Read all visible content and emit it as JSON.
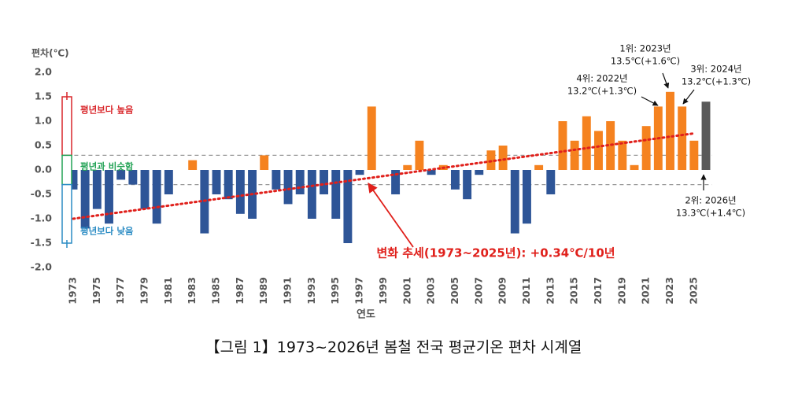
{
  "chart_data": {
    "type": "bar",
    "y_axis_title": "편차(℃)",
    "x_axis_title": "연도",
    "caption": "【그림 1】1973~2026년 봄철 전국 평균기온 편차 시계열",
    "x": [
      1973,
      1974,
      1975,
      1976,
      1977,
      1978,
      1979,
      1980,
      1981,
      1982,
      1983,
      1984,
      1985,
      1986,
      1987,
      1988,
      1989,
      1990,
      1991,
      1992,
      1993,
      1994,
      1995,
      1996,
      1997,
      1998,
      1999,
      2000,
      2001,
      2002,
      2003,
      2004,
      2005,
      2006,
      2007,
      2008,
      2009,
      2010,
      2011,
      2012,
      2013,
      2014,
      2015,
      2016,
      2017,
      2018,
      2019,
      2020,
      2021,
      2022,
      2023,
      2024,
      2025,
      2026
    ],
    "values": [
      -0.4,
      -1.2,
      -0.8,
      -1.1,
      -0.2,
      -0.3,
      -0.8,
      -1.1,
      -0.5,
      0.0,
      0.2,
      -1.3,
      -0.5,
      -0.6,
      -0.9,
      -1.0,
      0.3,
      -0.4,
      -0.7,
      -0.5,
      -1.0,
      -0.5,
      -1.0,
      -1.5,
      -0.1,
      1.3,
      0.0,
      -0.5,
      0.1,
      0.6,
      -0.1,
      0.1,
      -0.4,
      -0.6,
      -0.1,
      0.4,
      0.5,
      -1.3,
      -1.1,
      0.1,
      -0.5,
      1.0,
      0.6,
      1.1,
      0.8,
      1.0,
      0.6,
      0.1,
      0.9,
      1.3,
      1.6,
      1.3,
      0.6,
      1.4
    ],
    "colors": [
      "#2E5597",
      "#2E5597",
      "#2E5597",
      "#2E5597",
      "#2E5597",
      "#2E5597",
      "#2E5597",
      "#2E5597",
      "#2E5597",
      "#2E5597",
      "#F5821F",
      "#2E5597",
      "#2E5597",
      "#2E5597",
      "#2E5597",
      "#2E5597",
      "#F5821F",
      "#2E5597",
      "#2E5597",
      "#2E5597",
      "#2E5597",
      "#2E5597",
      "#2E5597",
      "#2E5597",
      "#2E5597",
      "#F5821F",
      "#2E5597",
      "#2E5597",
      "#F5821F",
      "#F5821F",
      "#2E5597",
      "#F5821F",
      "#2E5597",
      "#2E5597",
      "#2E5597",
      "#F5821F",
      "#F5821F",
      "#2E5597",
      "#2E5597",
      "#F5821F",
      "#2E5597",
      "#F5821F",
      "#F5821F",
      "#F5821F",
      "#F5821F",
      "#F5821F",
      "#F5821F",
      "#F5821F",
      "#F5821F",
      "#F5821F",
      "#F5821F",
      "#F5821F",
      "#F5821F",
      "#595959"
    ],
    "xlim": [
      1972.5,
      2026.5
    ],
    "xticks": [
      1973,
      1975,
      1977,
      1979,
      1981,
      1983,
      1985,
      1987,
      1989,
      1991,
      1993,
      1995,
      1997,
      1999,
      2001,
      2003,
      2005,
      2007,
      2009,
      2011,
      2013,
      2015,
      2017,
      2019,
      2021,
      2023,
      2025
    ],
    "ylim": [
      -2.0,
      2.0
    ],
    "yticks": [
      {
        "value": -2.0,
        "label": "-2.0"
      },
      {
        "value": -1.5,
        "label": "-1.5"
      },
      {
        "value": -1.0,
        "label": "-1.0"
      },
      {
        "value": -0.5,
        "label": "-0.5"
      },
      {
        "value": 0,
        "label": "0.0"
      },
      {
        "value": 0.5,
        "label": "0.5"
      },
      {
        "value": 1.0,
        "label": "1.0"
      },
      {
        "value": 1.5,
        "label": "1.5"
      },
      {
        "value": 2.0,
        "label": "2.0"
      }
    ],
    "reference_lines": [
      0.3,
      -0.3
    ],
    "trend": {
      "label": "변화 추세(1973~2025년): +0.34℃/10년",
      "color": "#E0201B",
      "x": [
        1973,
        2025
      ],
      "values": [
        -1.0,
        0.75
      ]
    },
    "bands": [
      {
        "label": "평년보다 높음",
        "color": "#D9262A",
        "range": [
          0.3,
          1.5
        ]
      },
      {
        "label": "평년과 비슷함",
        "color": "#22A255",
        "range": [
          -0.3,
          0.3
        ]
      },
      {
        "label": "평년보다 낮음",
        "color": "#2B8CC4",
        "range": [
          -1.5,
          -0.3
        ]
      }
    ],
    "annotations": [
      {
        "lines": [
          "1위: 2023년",
          "13.5℃(+1.6℃)"
        ]
      },
      {
        "lines": [
          "4위: 2022년",
          "13.2℃(+1.3℃)"
        ]
      },
      {
        "lines": [
          "3위: 2024년",
          "13.2℃(+1.3℃)"
        ]
      },
      {
        "lines": [
          "2위: 2026년",
          "13.3℃(+1.4℃)"
        ]
      }
    ]
  }
}
